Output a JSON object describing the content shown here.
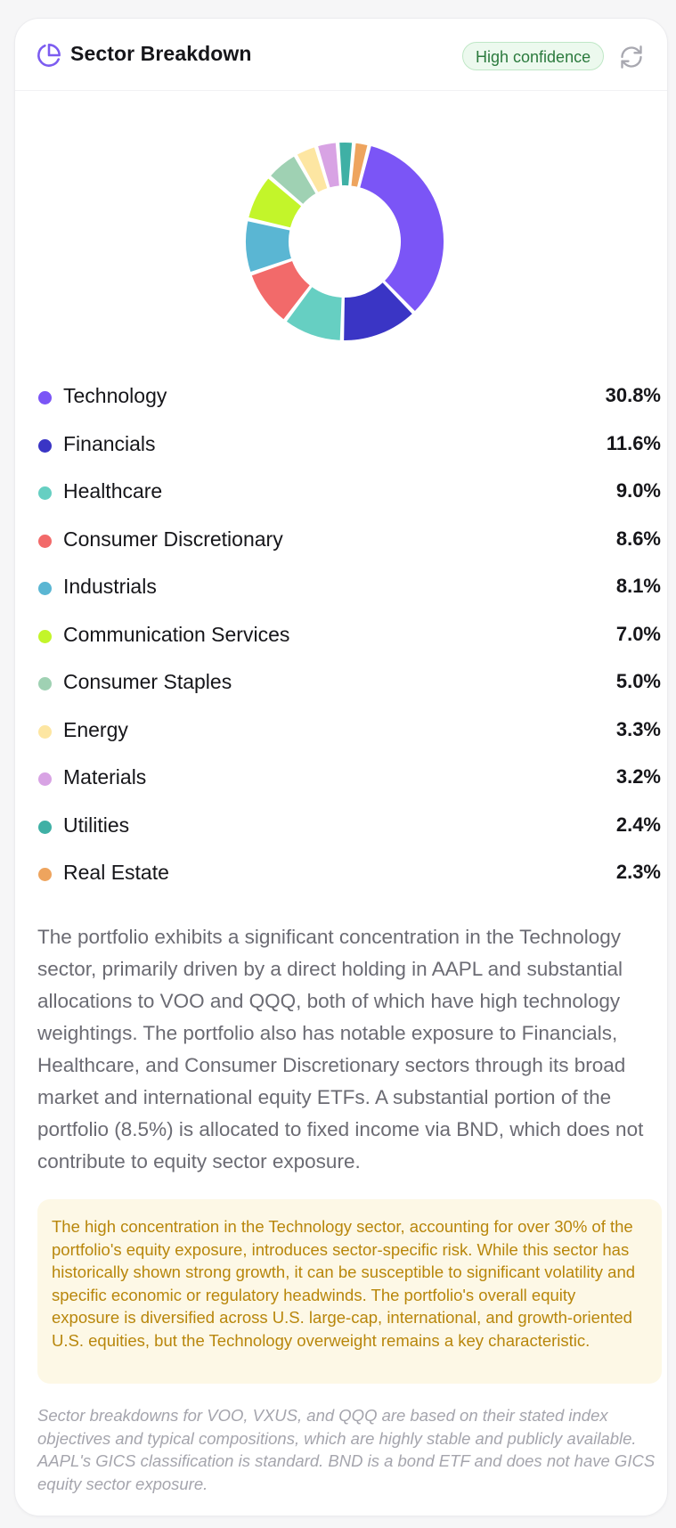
{
  "header": {
    "title": "Sector Breakdown",
    "icon": "pie-chart-icon",
    "confidence_badge": "High confidence",
    "refresh_icon": "refresh-icon"
  },
  "colors": {
    "accent": "#7c5cf0",
    "badge_bg": "#ecf9ee",
    "badge_text": "#2b7a3d",
    "warning_bg": "#fdf8e6",
    "warning_text": "#b8860b"
  },
  "chart_data": {
    "type": "pie",
    "variant": "donut",
    "categories": [
      "Technology",
      "Financials",
      "Healthcare",
      "Consumer Discretionary",
      "Industrials",
      "Communication Services",
      "Consumer Staples",
      "Energy",
      "Materials",
      "Utilities",
      "Real Estate"
    ],
    "values": [
      30.8,
      11.6,
      9.0,
      8.6,
      8.1,
      7.0,
      5.0,
      3.3,
      3.2,
      2.4,
      2.3
    ],
    "colors": [
      "#7b55f6",
      "#3a35c5",
      "#66cfc2",
      "#f26a6a",
      "#5ab6d3",
      "#c3f52a",
      "#9fd1b3",
      "#fde6a2",
      "#d8a3e4",
      "#3fb0a5",
      "#eea45e"
    ]
  },
  "legend": [
    {
      "name": "Technology",
      "value": "30.8%",
      "color": "#7b55f6"
    },
    {
      "name": "Financials",
      "value": "11.6%",
      "color": "#3a35c5"
    },
    {
      "name": "Healthcare",
      "value": "9.0%",
      "color": "#66cfc2"
    },
    {
      "name": "Consumer Discretionary",
      "value": "8.6%",
      "color": "#f26a6a"
    },
    {
      "name": "Industrials",
      "value": "8.1%",
      "color": "#5ab6d3"
    },
    {
      "name": "Communication Services",
      "value": "7.0%",
      "color": "#c3f52a"
    },
    {
      "name": "Consumer Staples",
      "value": "5.0%",
      "color": "#9fd1b3"
    },
    {
      "name": "Energy",
      "value": "3.3%",
      "color": "#fde6a2"
    },
    {
      "name": "Materials",
      "value": "3.2%",
      "color": "#d8a3e4"
    },
    {
      "name": "Utilities",
      "value": "2.4%",
      "color": "#3fb0a5"
    },
    {
      "name": "Real Estate",
      "value": "2.3%",
      "color": "#eea45e"
    }
  ],
  "summary": "The portfolio exhibits a significant concentration in the Technology sector, primarily driven by a direct holding in AAPL and substantial allocations to VOO and QQQ, both of which have high technology weightings. The portfolio also has notable exposure to Financials, Healthcare, and Consumer Discretionary sectors through its broad market and international equity ETFs. A substantial portion of the portfolio (8.5%) is allocated to fixed income via BND, which does not contribute to equity sector exposure.",
  "warning": "The high concentration in the Technology sector, accounting for over 30% of the portfolio's equity exposure, introduces sector-specific risk. While this sector has historically shown strong growth, it can be susceptible to significant volatility and specific economic or regulatory headwinds. The portfolio's overall equity exposure is diversified across U.S. large-cap, international, and growth-oriented U.S. equities, but the Technology overweight remains a key characteristic.",
  "note": "Sector breakdowns for VOO, VXUS, and QQQ are based on their stated index objectives and typical compositions, which are highly stable and publicly available. AAPL's GICS classification is standard. BND is a bond ETF and does not have GICS equity sector exposure."
}
